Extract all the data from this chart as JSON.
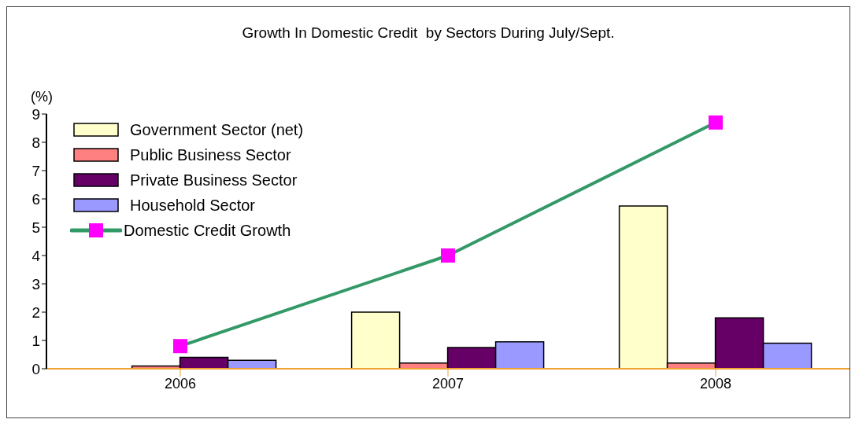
{
  "chart_data": {
    "type": "bar",
    "title": "Growth In Domestic Credit  by Sectors During July/Sept.",
    "ylabel": "(%)",
    "categories": [
      "2006",
      "2007",
      "2008"
    ],
    "series": [
      {
        "name": "Government Sector (net)",
        "color": "#ffffcc",
        "values": [
          0,
          2.0,
          5.75
        ]
      },
      {
        "name": "Public Business Sector",
        "color": "#ff8080",
        "values": [
          0.1,
          0.2,
          0.2
        ]
      },
      {
        "name": "Private Business Sector",
        "color": "#660066",
        "values": [
          0.4,
          0.75,
          1.8
        ]
      },
      {
        "name": "Household Sector",
        "color": "#9999ff",
        "values": [
          0.3,
          0.95,
          0.9
        ]
      },
      {
        "name": "Domestic Credit Growth",
        "type": "line",
        "color": "#339966",
        "colors": [
          "#ff00ff",
          "#ff00ff",
          "#ff00ff"
        ],
        "values": [
          0.8,
          4.0,
          8.7
        ]
      }
    ],
    "ylim": [
      0,
      9
    ],
    "yticks": [
      0,
      1,
      2,
      3,
      4,
      5,
      6,
      7,
      8,
      9
    ],
    "grid": false,
    "legend": "top left",
    "marker": "square",
    "line_style": "solid"
  }
}
